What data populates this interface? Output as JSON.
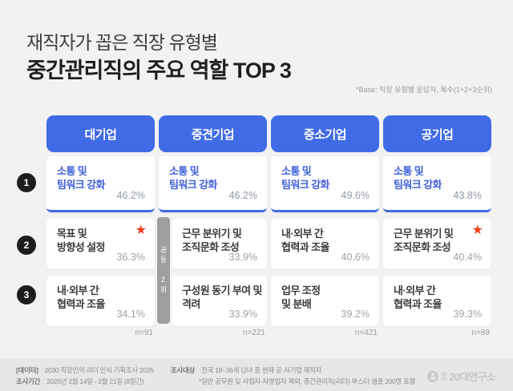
{
  "header": {
    "title_line1": "재직자가 꼽은 직장 유형별",
    "title_line2": "중간관리직의 주요 역할 TOP 3",
    "base_note": "*Base: 직장 유형별 응답자, 복수(1+2+3순위)"
  },
  "badges": [
    "1",
    "2",
    "3"
  ],
  "icons": {
    "star": "★"
  },
  "colors": {
    "accent_blue": "#416BE6",
    "rank1_text_blue": "#3D5ED9",
    "star_red": "#EE3D1B",
    "tie_tab_gray": "#9E9E9E",
    "badge_black": "#1D1D1D",
    "background": "#F2F2F2",
    "footer_background": "#E7E7E7"
  },
  "chart_data": {
    "type": "table",
    "title": "재직자가 꼽은 직장 유형별 중간관리직의 주요 역할 TOP 3",
    "base": "직장 유형별 응답자, 복수(1+2+3순위)",
    "tie_note": "공동 2위",
    "tie_applies_to": {
      "column": "중견기업",
      "ranks": [
        2,
        3
      ]
    },
    "columns": [
      {
        "company_type": "대기업",
        "n": "n=91",
        "ranks": [
          {
            "rank": 1,
            "label": "소통 및 팀워크 강화",
            "label_lines": [
              "소통 및",
              "팀워크 강화"
            ],
            "value": 46.2,
            "value_label": "46.2%",
            "starred": false
          },
          {
            "rank": 2,
            "label": "목표 및 방향성 설정",
            "label_lines": [
              "목표 및",
              "방향성 설정"
            ],
            "value": 36.3,
            "value_label": "36.3%",
            "starred": true
          },
          {
            "rank": 3,
            "label": "내·외부 간 협력과 조율",
            "label_lines": [
              "내·외부 간",
              "협력과 조율"
            ],
            "value": 34.1,
            "value_label": "34.1%",
            "starred": false
          }
        ]
      },
      {
        "company_type": "중견기업",
        "n": "n=221",
        "ranks": [
          {
            "rank": 1,
            "label": "소통 및 팀워크 강화",
            "label_lines": [
              "소통 및",
              "팀워크 강화"
            ],
            "value": 46.2,
            "value_label": "46.2%",
            "starred": false
          },
          {
            "rank": 2,
            "label": "근무 분위기 및 조직문화 조성",
            "label_lines": [
              "근무 분위기 및",
              "조직문화 조성"
            ],
            "value": 33.9,
            "value_label": "33.9%",
            "starred": false
          },
          {
            "rank": 3,
            "label": "구성원 동기 부여 및 격려",
            "label_lines": [
              "구성원 동기 부여 및",
              "격려"
            ],
            "value": 33.9,
            "value_label": "33.9%",
            "starred": false
          }
        ]
      },
      {
        "company_type": "중소기업",
        "n": "n=421",
        "ranks": [
          {
            "rank": 1,
            "label": "소통 및 팀워크 강화",
            "label_lines": [
              "소통 및",
              "팀워크 강화"
            ],
            "value": 49.6,
            "value_label": "49.6%",
            "starred": false
          },
          {
            "rank": 2,
            "label": "내·외부 간 협력과 조율",
            "label_lines": [
              "내·외부 간",
              "협력과 조율"
            ],
            "value": 40.6,
            "value_label": "40.6%",
            "starred": false
          },
          {
            "rank": 3,
            "label": "업무 조정 및 분배",
            "label_lines": [
              "업무 조정",
              "및 분배"
            ],
            "value": 39.2,
            "value_label": "39.2%",
            "starred": false
          }
        ]
      },
      {
        "company_type": "공기업",
        "n": "n=89",
        "ranks": [
          {
            "rank": 1,
            "label": "소통 및 팀워크 강화",
            "label_lines": [
              "소통 및",
              "팀워크 강화"
            ],
            "value": 43.8,
            "value_label": "43.8%",
            "starred": false
          },
          {
            "rank": 2,
            "label": "근무 분위기 및 조직문화 조성",
            "label_lines": [
              "근무 분위기 및",
              "조직문화 조성"
            ],
            "value": 40.4,
            "value_label": "40.4%",
            "starred": true
          },
          {
            "rank": 3,
            "label": "내·외부 간 협력과 조율",
            "label_lines": [
              "내·외부 간",
              "협력과 조율"
            ],
            "value": 39.3,
            "value_label": "39.3%",
            "starred": false
          }
        ]
      }
    ]
  },
  "footer": {
    "data_label": "[데이터]",
    "data_value": "2030 직장인의 리더 인식 기획조사 2025",
    "period_label": "조사기간",
    "period_value": "2025년 2월 14일 - 2월 21일 (8일간)",
    "target_label": "조사대상",
    "target_value": "전국 19~36세 남녀 중 현재 공·사기업 재직자",
    "target_note": "*일반 공무원 및 사업자·자영업자 제외, 중간관리직(리더) 부스터 샘플 200명 포함",
    "logo_small_1": "대학",
    "logo_small_2": "내일",
    "logo_text": "20대연구소"
  }
}
